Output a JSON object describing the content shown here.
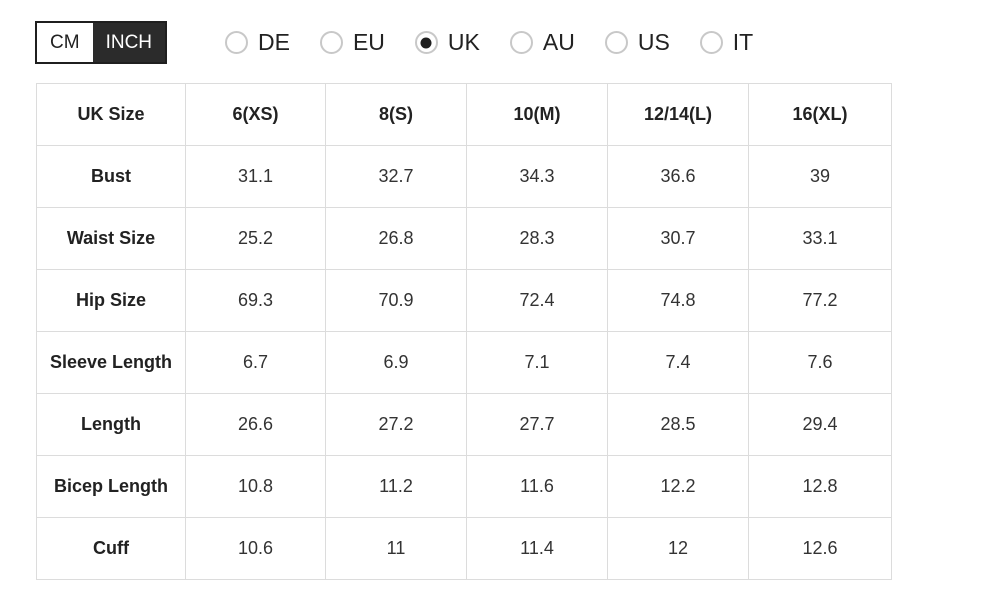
{
  "unit_toggle": {
    "options": [
      {
        "label": "CM",
        "selected": false
      },
      {
        "label": "INCH",
        "selected": true
      }
    ]
  },
  "region_options": [
    {
      "label": "DE",
      "selected": false
    },
    {
      "label": "EU",
      "selected": false
    },
    {
      "label": "UK",
      "selected": true
    },
    {
      "label": "AU",
      "selected": false
    },
    {
      "label": "US",
      "selected": false
    },
    {
      "label": "IT",
      "selected": false
    }
  ],
  "size_table": {
    "header": [
      "UK Size",
      "6(XS)",
      "8(S)",
      "10(M)",
      "12/14(L)",
      "16(XL)"
    ],
    "rows": [
      {
        "label": "Bust",
        "values": [
          "31.1",
          "32.7",
          "34.3",
          "36.6",
          "39"
        ]
      },
      {
        "label": "Waist Size",
        "values": [
          "25.2",
          "26.8",
          "28.3",
          "30.7",
          "33.1"
        ]
      },
      {
        "label": "Hip Size",
        "values": [
          "69.3",
          "70.9",
          "72.4",
          "74.8",
          "77.2"
        ]
      },
      {
        "label": "Sleeve Length",
        "values": [
          "6.7",
          "6.9",
          "7.1",
          "7.4",
          "7.6"
        ]
      },
      {
        "label": "Length",
        "values": [
          "26.6",
          "27.2",
          "27.7",
          "28.5",
          "29.4"
        ]
      },
      {
        "label": "Bicep Length",
        "values": [
          "10.8",
          "11.2",
          "11.6",
          "12.2",
          "12.8"
        ]
      },
      {
        "label": "Cuff",
        "values": [
          "10.6",
          "11",
          "11.4",
          "12",
          "12.6"
        ]
      }
    ]
  },
  "colors": {
    "toggle_selected_bg": "#2b2b2b",
    "toggle_border": "#1f1f1f",
    "radio_border": "#c8c8c8",
    "radio_dot": "#1f1f1f",
    "table_border": "#dcdcdc",
    "text": "#222222"
  }
}
